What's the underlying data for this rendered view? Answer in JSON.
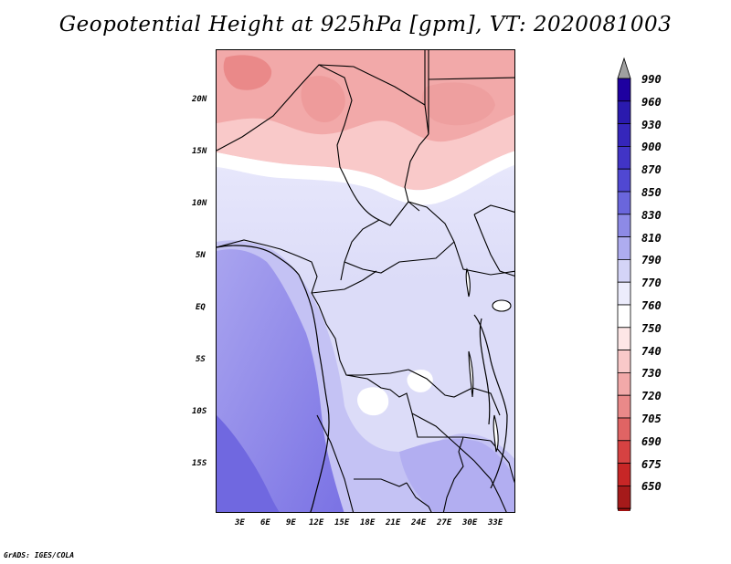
{
  "title": "Geopotential Height at 925hPa [gpm], VT: 2020081003",
  "footer": "GrADS: IGES/COLA",
  "lat_labels": [
    "20N",
    "15N",
    "10N",
    "5N",
    "EQ",
    "5S",
    "10S",
    "15S"
  ],
  "lon_labels": [
    "3E",
    "6E",
    "9E",
    "12E",
    "15E",
    "18E",
    "21E",
    "24E",
    "27E",
    "30E",
    "33E"
  ],
  "colorbar": {
    "levels": [
      "990",
      "960",
      "930",
      "900",
      "870",
      "850",
      "830",
      "810",
      "790",
      "770",
      "760",
      "750",
      "740",
      "730",
      "720",
      "705",
      "690",
      "675",
      "650"
    ],
    "colors": [
      "#1e00a0",
      "#2a1aae",
      "#3526bb",
      "#4134c6",
      "#5048d2",
      "#6a66dc",
      "#8d8ae6",
      "#aeacef",
      "#d4d4f7",
      "#ececfc",
      "#ffffff",
      "#fde6e6",
      "#f9c9c9",
      "#f2a9a9",
      "#ea8989",
      "#e06464",
      "#d64242",
      "#c72626",
      "#a51a1a"
    ]
  },
  "map": {
    "region": "Central Africa",
    "lon_range": [
      0,
      35
    ],
    "lat_range": [
      -20,
      25
    ]
  }
}
